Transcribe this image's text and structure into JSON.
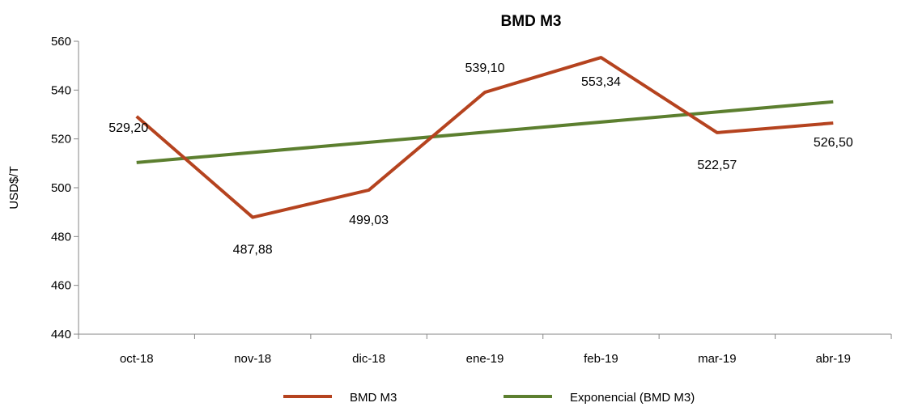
{
  "chart_data": {
    "type": "line",
    "title": "BMD M3",
    "xlabel": "",
    "ylabel": "USD$/T",
    "categories": [
      "oct-18",
      "nov-18",
      "dic-18",
      "ene-19",
      "feb-19",
      "mar-19",
      "abr-19"
    ],
    "ylim": [
      440,
      560
    ],
    "yticks": [
      440,
      460,
      480,
      500,
      520,
      540,
      560
    ],
    "ytick_labels": [
      "440",
      "460",
      "480",
      "500",
      "520",
      "540",
      "560"
    ],
    "grid": false,
    "legend_position": "bottom",
    "series": [
      {
        "name": "BMD M3",
        "color": "#B5431F",
        "values": [
          529.2,
          487.88,
          499.03,
          539.1,
          553.34,
          522.57,
          526.5
        ],
        "data_labels": [
          "529,20",
          "487,88",
          "499,03",
          "539,10",
          "553,34",
          "522,57",
          "526,50"
        ]
      },
      {
        "name": "Exponencial (BMD M3)",
        "color": "#5C7F2F",
        "trendline": "exponential",
        "values": [
          510.3,
          514.3,
          518.4,
          522.6,
          526.8,
          531.0,
          535.2
        ]
      }
    ]
  }
}
